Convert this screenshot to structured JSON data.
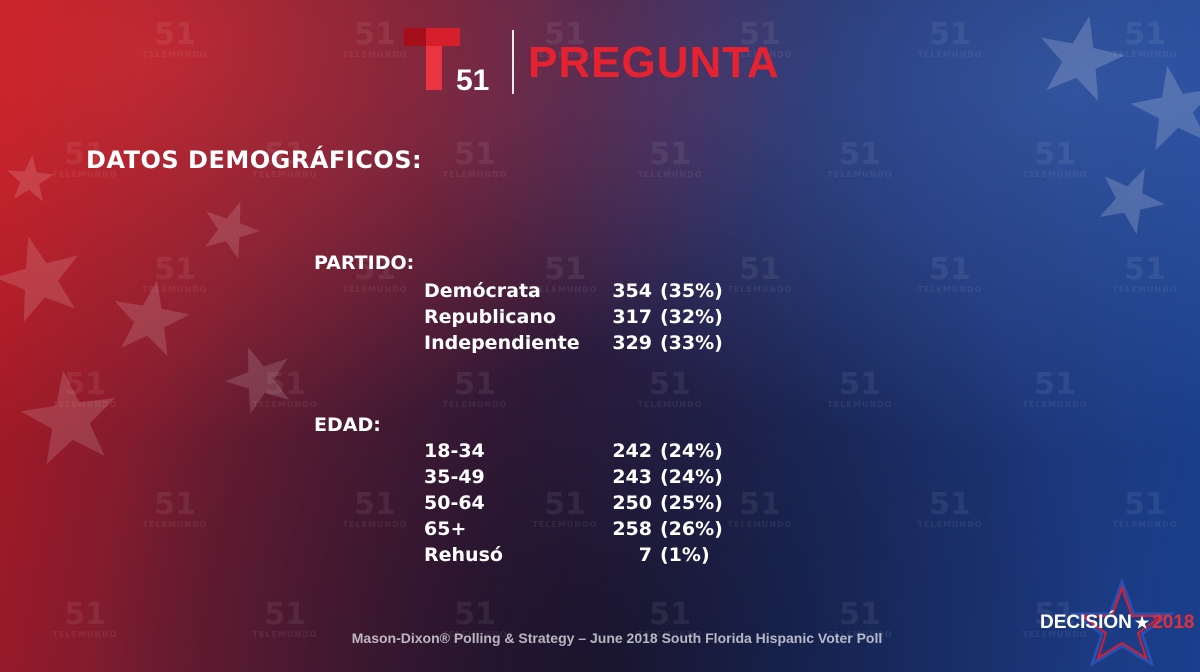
{
  "header": {
    "channel_number": "51",
    "segment_title": "PREGUNTA"
  },
  "title": "DATOS DEMOGRÁFICOS:",
  "partido": {
    "heading": "PARTIDO:",
    "rows": [
      {
        "label": "Demócrata",
        "count": "354",
        "pct": "(35%)"
      },
      {
        "label": "Republicano",
        "count": "317",
        "pct": "(32%)"
      },
      {
        "label": "Independiente",
        "count": "329",
        "pct": "(33%)"
      }
    ]
  },
  "edad": {
    "heading": "EDAD:",
    "rows": [
      {
        "label": "18-34",
        "count": "242",
        "pct": "(24%)"
      },
      {
        "label": "35-49",
        "count": "243",
        "pct": "(24%)"
      },
      {
        "label": "50-64",
        "count": "250",
        "pct": "(25%)"
      },
      {
        "label": "65+",
        "count": "258",
        "pct": "(26%)"
      },
      {
        "label": "Rehusó",
        "count": "7",
        "pct": "(1%)"
      }
    ]
  },
  "footer": "Mason-Dixon® Polling & Strategy – June 2018 South Florida Hispanic Voter Poll",
  "badge": {
    "word": "DECISIÓN",
    "year": "2018"
  },
  "watermark": {
    "number": "51",
    "brand": "TELEMUNDO"
  },
  "colors": {
    "brand_red": "#e62231",
    "text": "#ffffff"
  }
}
